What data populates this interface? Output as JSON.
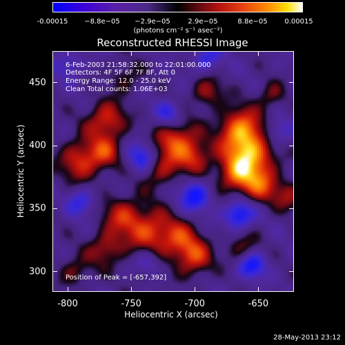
{
  "colorbar": {
    "ticks": [
      "-0.00015",
      "−8.8e−05",
      "−2.9e−05",
      "2.9e−05",
      "8.8e−05",
      "0.00015"
    ],
    "units": "(photons cm⁻² s⁻¹ asec⁻²)",
    "range": [
      -0.00015,
      0.00015
    ]
  },
  "info": {
    "time": "6-Feb-2003 21:58:32.000 to 22:01:00.000",
    "detectors": "Detectors: 4F 5F 6F 7F 8F, Att 0",
    "energy": "Energy Range: 12.0 - 25.0 keV",
    "clean": "Clean     Total counts: 1.06E+03",
    "peak": "Position of Peak = [-657,392]"
  },
  "footer": "28-May-2013 23:12",
  "chart_data": {
    "type": "heatmap",
    "title": "Reconstructed RHESSI Image",
    "xlabel": "Heliocentric X (arcsec)",
    "ylabel": "Heliocentric Y (arcsec)",
    "xlim": [
      -812,
      -622
    ],
    "ylim": [
      284,
      475
    ],
    "xticks": [
      "-800",
      "-750",
      "-700",
      "-650"
    ],
    "yticks": [
      "300",
      "350",
      "400",
      "450"
    ],
    "xtick_values": [
      -800,
      -750,
      -700,
      -650
    ],
    "ytick_values": [
      300,
      350,
      400,
      450
    ],
    "peak": [
      -657,
      392
    ],
    "peak_value": 0.00015,
    "colormap": "blue-purple-black-red-yellow-white",
    "blobs": [
      {
        "x": -657,
        "y": 392,
        "v": 1.0,
        "r": 14
      },
      {
        "x": -664,
        "y": 414,
        "v": 0.8,
        "r": 12
      },
      {
        "x": -648,
        "y": 368,
        "v": 0.6,
        "r": 10
      },
      {
        "x": -668,
        "y": 375,
        "v": 0.55,
        "r": 10
      },
      {
        "x": -715,
        "y": 405,
        "v": 0.75,
        "r": 12
      },
      {
        "x": -730,
        "y": 382,
        "v": 0.6,
        "r": 11
      },
      {
        "x": -700,
        "y": 390,
        "v": 0.55,
        "r": 10
      },
      {
        "x": -736,
        "y": 332,
        "v": 0.7,
        "r": 13
      },
      {
        "x": -758,
        "y": 345,
        "v": 0.55,
        "r": 11
      },
      {
        "x": -712,
        "y": 325,
        "v": 0.6,
        "r": 11
      },
      {
        "x": -700,
        "y": 310,
        "v": 0.65,
        "r": 10
      },
      {
        "x": -790,
        "y": 388,
        "v": 0.7,
        "r": 12
      },
      {
        "x": -770,
        "y": 420,
        "v": 0.7,
        "r": 11
      },
      {
        "x": -770,
        "y": 395,
        "v": 0.5,
        "r": 9
      },
      {
        "x": -770,
        "y": 318,
        "v": 0.55,
        "r": 10
      },
      {
        "x": -662,
        "y": 318,
        "v": 0.45,
        "r": 9
      },
      {
        "x": -690,
        "y": 443,
        "v": 0.5,
        "r": 9
      },
      {
        "x": -755,
        "y": 455,
        "v": 0.35,
        "r": 9
      },
      {
        "x": -640,
        "y": 440,
        "v": 0.4,
        "r": 8
      },
      {
        "x": -625,
        "y": 360,
        "v": 0.45,
        "r": 9
      },
      {
        "x": -795,
        "y": 300,
        "v": 0.4,
        "r": 9
      },
      {
        "x": -740,
        "y": 300,
        "v": 0.4,
        "r": 9
      },
      {
        "x": -740,
        "y": 390,
        "v": -0.8,
        "r": 9
      },
      {
        "x": -700,
        "y": 360,
        "v": -0.7,
        "r": 9
      },
      {
        "x": -665,
        "y": 345,
        "v": -0.8,
        "r": 8
      },
      {
        "x": -655,
        "y": 305,
        "v": -0.75,
        "r": 8
      },
      {
        "x": -738,
        "y": 305,
        "v": -0.7,
        "r": 8
      },
      {
        "x": -720,
        "y": 425,
        "v": -0.55,
        "r": 8
      },
      {
        "x": -690,
        "y": 470,
        "v": -0.5,
        "r": 8
      },
      {
        "x": -790,
        "y": 355,
        "v": -0.5,
        "r": 8
      },
      {
        "x": -635,
        "y": 410,
        "v": -0.45,
        "r": 8
      },
      {
        "x": -800,
        "y": 465,
        "v": -0.4,
        "r": 8
      }
    ]
  }
}
